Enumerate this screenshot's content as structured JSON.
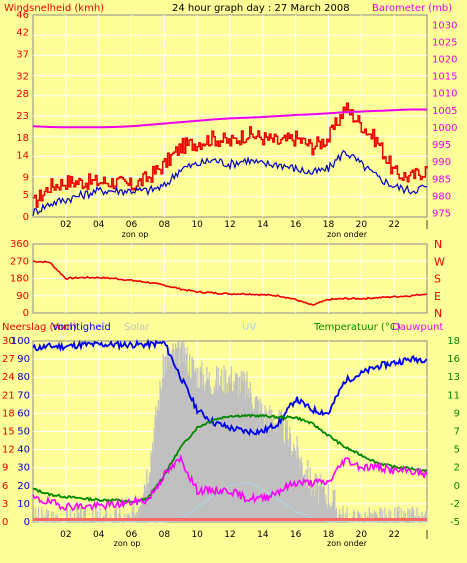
{
  "header": {
    "left": "Windsnelheid (kmh)",
    "center": "24 hour graph day : 27 March 2008",
    "right": "Barometer (mb)"
  },
  "colors": {
    "background": "#ffff99",
    "plot_bg": "#ffff99",
    "grid": "#ffffff",
    "wind_gust": "#ee0000",
    "wind_avg": "#0000cc",
    "barometer": "#ee00ee",
    "direction": "#ee0000",
    "humidity": "#0000ee",
    "temperature": "#008800",
    "dewpoint": "#ff00ff",
    "solar": "#c0c0c0",
    "uv": "#add8e6",
    "rain": "#ff6666"
  },
  "chart_data": [
    {
      "type": "line",
      "title": "24 hour graph day : 27 March 2008",
      "ylabel_left": "Windsnelheid (kmh)",
      "ylabel_right": "Barometer (mb)",
      "x_ticks": [
        "02",
        "04",
        "06",
        "08",
        "10",
        "12",
        "14",
        "16",
        "18",
        "20",
        "22",
        "|"
      ],
      "x_annotations": [
        "zon op",
        "zon onder"
      ],
      "y_left_ticks": [
        0,
        5,
        9,
        14,
        18,
        23,
        28,
        32,
        37,
        42,
        46
      ],
      "y_right_ticks": [
        975,
        980,
        985,
        990,
        995,
        1000,
        1005,
        1010,
        1015,
        1020,
        1025,
        1030
      ],
      "ylim_left": [
        0,
        46
      ],
      "ylim_right": [
        974,
        1033
      ],
      "x": [
        0,
        1,
        2,
        3,
        4,
        5,
        6,
        7,
        8,
        9,
        10,
        11,
        12,
        13,
        14,
        15,
        16,
        17,
        18,
        19,
        20,
        21,
        22,
        23,
        24
      ],
      "series": [
        {
          "name": "Windsnelheid (kmh)",
          "axis": "left",
          "values": [
            3,
            7,
            8,
            8,
            8,
            8,
            7,
            9,
            12,
            16,
            17,
            18,
            17,
            19,
            18,
            17,
            18,
            16,
            18,
            25,
            21,
            17,
            10,
            9,
            11
          ]
        },
        {
          "name": "wind average",
          "axis": "left",
          "values": [
            1,
            3,
            4,
            5,
            6,
            6,
            6,
            6,
            7,
            11,
            12,
            13,
            12,
            13,
            12,
            12,
            11,
            10,
            11,
            15,
            12,
            9,
            7,
            6,
            7
          ]
        },
        {
          "name": "Barometer (mb)",
          "axis": "right",
          "values": [
            1000.5,
            1000.3,
            1000.2,
            1000.2,
            1000.2,
            1000.3,
            1000.5,
            1000.9,
            1001.3,
            1001.7,
            1002.1,
            1002.5,
            1002.8,
            1003.0,
            1003.2,
            1003.5,
            1003.8,
            1004.0,
            1004.3,
            1004.6,
            1004.8,
            1005.0,
            1005.2,
            1005.4,
            1005.4
          ]
        }
      ]
    },
    {
      "type": "line",
      "ylabel_right": [
        "N",
        "W",
        "S",
        "E",
        "N"
      ],
      "y_left_ticks": [
        0,
        90,
        180,
        270,
        360
      ],
      "ylim": [
        0,
        360
      ],
      "x": [
        0,
        1,
        2,
        3,
        4,
        5,
        6,
        7,
        8,
        9,
        10,
        11,
        12,
        13,
        14,
        15,
        16,
        17,
        18,
        19,
        20,
        21,
        22,
        23,
        24
      ],
      "series": [
        {
          "name": "wind direction",
          "values": [
            270,
            265,
            180,
            185,
            185,
            180,
            170,
            160,
            145,
            125,
            110,
            105,
            100,
            100,
            95,
            90,
            70,
            40,
            70,
            75,
            75,
            80,
            85,
            90,
            100
          ]
        }
      ]
    },
    {
      "type": "line",
      "legend": [
        "Neerslag (mm)",
        "Vochtigheid",
        "Solar",
        "UV",
        "Temperatuur (°C)",
        "Dauwpunt"
      ],
      "y_left1_ticks": [
        0,
        3,
        6,
        9,
        12,
        15,
        18,
        21,
        24,
        27,
        30
      ],
      "y_left2_ticks": [
        0,
        10,
        20,
        30,
        40,
        50,
        60,
        70,
        80,
        90,
        100
      ],
      "y_right_ticks": [
        -5,
        -2,
        0,
        2,
        5,
        7,
        9,
        11,
        13,
        16,
        18
      ],
      "x_ticks": [
        "02",
        "04",
        "06",
        "08",
        "10",
        "12",
        "14",
        "16",
        "18",
        "20",
        "22",
        "|"
      ],
      "x_annotations": [
        "zon op",
        "zon onder"
      ],
      "ylim_humidity": [
        0,
        100
      ],
      "ylim_temperature": [
        -5,
        18
      ],
      "x": [
        0,
        1,
        2,
        3,
        4,
        5,
        6,
        7,
        8,
        9,
        10,
        11,
        12,
        13,
        14,
        15,
        16,
        17,
        18,
        19,
        20,
        21,
        22,
        23,
        24
      ],
      "series": [
        {
          "name": "Vochtigheid",
          "values": [
            96,
            97,
            97,
            98,
            98,
            98,
            98,
            98,
            99,
            80,
            62,
            55,
            52,
            50,
            50,
            55,
            68,
            62,
            60,
            78,
            82,
            86,
            88,
            90,
            90
          ]
        },
        {
          "name": "Temperatuur (°C)",
          "values": [
            -0.8,
            -1.5,
            -1.8,
            -2.0,
            -2.2,
            -2.2,
            -2.5,
            -2.0,
            1.0,
            4.5,
            7.0,
            8.0,
            8.5,
            8.5,
            8.5,
            8.3,
            8.3,
            7.5,
            6.0,
            4.5,
            3.5,
            2.5,
            2.0,
            1.8,
            1.5
          ]
        },
        {
          "name": "Dauwpunt",
          "values": [
            -2,
            -2.5,
            -3,
            -3,
            -3,
            -2.8,
            -2.5,
            -2.2,
            1,
            3,
            -1,
            -1,
            -1,
            -2,
            -2,
            -1,
            0,
            0,
            0,
            3,
            2,
            2,
            1.5,
            1.5,
            1.0
          ]
        },
        {
          "name": "Solar",
          "values": [
            0,
            0,
            0,
            0,
            0,
            0,
            0,
            30,
            90,
            95,
            82,
            78,
            80,
            75,
            60,
            55,
            40,
            20,
            15,
            0,
            0,
            0,
            0,
            0,
            0
          ]
        },
        {
          "name": "UV",
          "values": [
            0,
            0,
            0,
            0,
            0,
            0,
            0,
            0,
            0,
            2,
            8,
            15,
            20,
            22,
            18,
            12,
            6,
            2,
            0,
            0,
            0,
            0,
            0,
            0,
            0
          ]
        }
      ]
    }
  ]
}
